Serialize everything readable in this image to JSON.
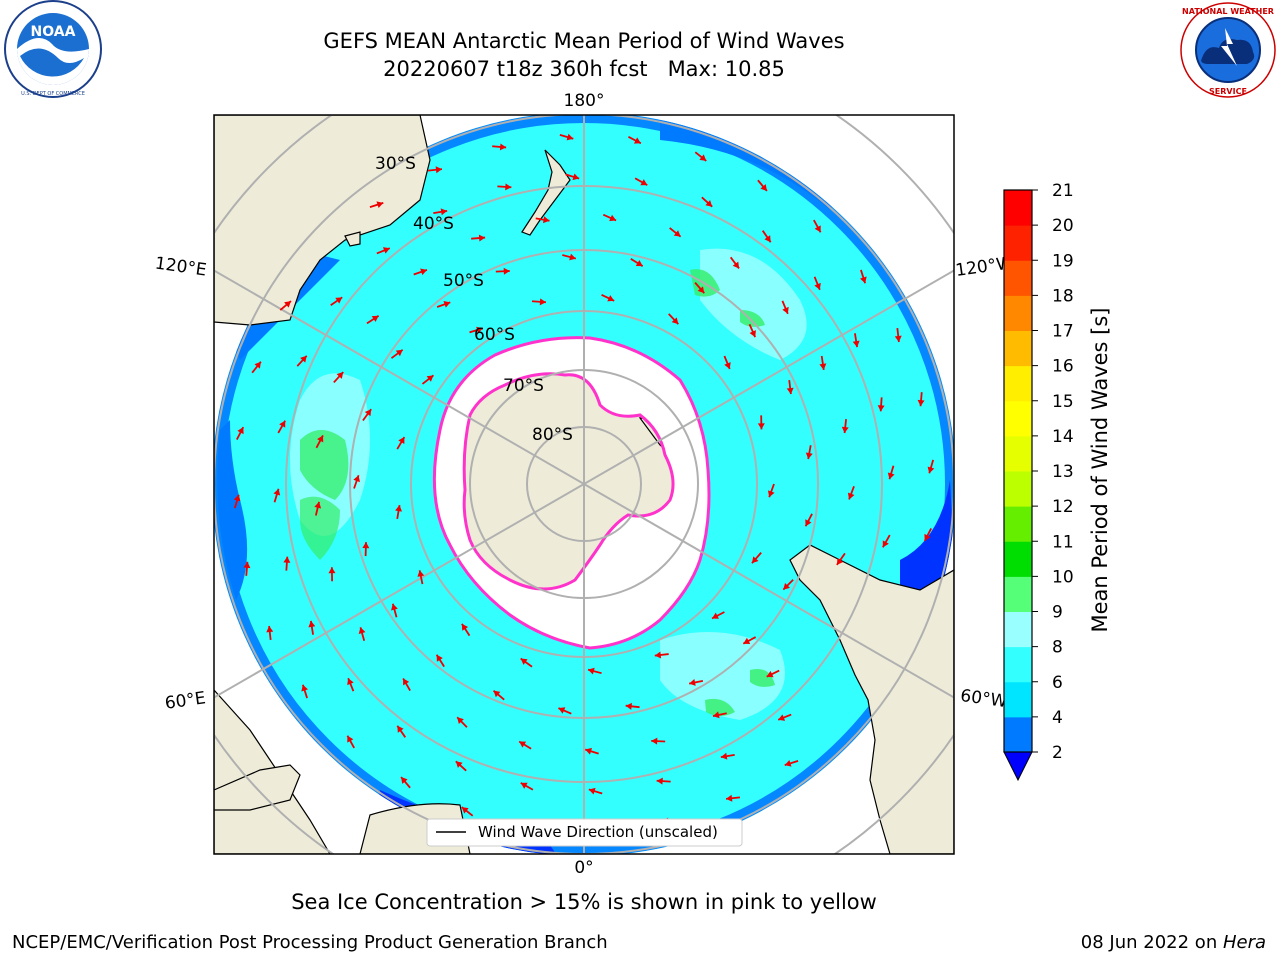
{
  "title": {
    "line1": "GEFS MEAN Antarctic Mean Period of Wind Waves",
    "line2": "20220607 t18z 360h fcst   Max: 10.85"
  },
  "logos": {
    "left": {
      "icon": "noaa-logo-icon",
      "text": "NOAA",
      "ring_text": "NATIONAL OCEANIC AND ATMOSPHERIC ADMINISTRATION · U.S. DEPARTMENT OF COMMERCE"
    },
    "right": {
      "icon": "nws-logo-icon",
      "ring_text": "NATIONAL WEATHER SERVICE"
    }
  },
  "map": {
    "projection": "south-polar-stereographic",
    "longitude_labels": [
      {
        "text": "180°",
        "lon": 180
      },
      {
        "text": "120°E",
        "lon": 120
      },
      {
        "text": "120°W",
        "lon": -120
      },
      {
        "text": "60°E",
        "lon": 60
      },
      {
        "text": "60°W",
        "lon": -60
      },
      {
        "text": "0°",
        "lon": 0
      }
    ],
    "latitude_labels": [
      "30°S",
      "40°S",
      "50°S",
      "60°S",
      "70°S",
      "80°S"
    ],
    "legend": {
      "label": "Wind Wave Direction (unscaled)"
    },
    "colors": {
      "land": "#eeecd9",
      "ice": "#ffffff",
      "ocean_main": "#33ffff",
      "ocean_light": "#99ffff",
      "ocean_mid": "#00e5ff",
      "ocean_low": "#007bff",
      "ocean_deep": "#0033ff",
      "ocean_green": "#33ee66",
      "ice_edge": "#ff33cc",
      "arrows": "#ee0000",
      "grid": "#b0b0b0"
    }
  },
  "colorbar": {
    "title": "Mean Period of Wind Waves [s]",
    "ticks": [
      "2",
      "4",
      "6",
      "8",
      "9",
      "10",
      "11",
      "12",
      "13",
      "14",
      "15",
      "16",
      "17",
      "18",
      "19",
      "20",
      "21"
    ],
    "colors": [
      "#0000ff",
      "#007bff",
      "#00e5ff",
      "#33ffff",
      "#99ffff",
      "#55ff77",
      "#00dd00",
      "#66ee00",
      "#bbff00",
      "#e6ff00",
      "#ffff00",
      "#ffee00",
      "#ffbb00",
      "#ff8800",
      "#ff5500",
      "#ff2200",
      "#ff0000"
    ],
    "under_color": "#0000ff"
  },
  "footer": {
    "ice_note": "Sea Ice Concentration > 15% is shown in pink to yellow",
    "credit_left": "NCEP/EMC/Verification Post Processing Product Generation Branch",
    "credit_right_date": "08 Jun 2022 on ",
    "credit_right_machine": "Hera"
  }
}
